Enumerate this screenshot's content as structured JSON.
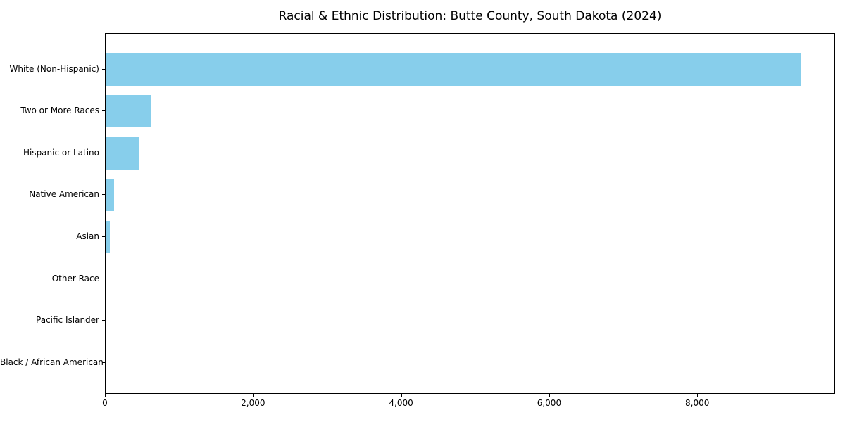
{
  "chart_data": {
    "type": "bar",
    "orientation": "horizontal",
    "title": "Racial & Ethnic Distribution: Butte County, South Dakota (2024)",
    "categories": [
      "White (Non-Hispanic)",
      "Two or More Races",
      "Hispanic or Latino",
      "Native American",
      "Asian",
      "Other Race",
      "Pacific Islander",
      "Black / African American"
    ],
    "values": [
      9390,
      620,
      455,
      115,
      57,
      10,
      6,
      0
    ],
    "xlabel": "",
    "ylabel": "",
    "xlim": [
      0,
      9862
    ],
    "x_ticks": [
      0,
      2000,
      4000,
      6000,
      8000
    ],
    "x_tick_labels": [
      "0",
      "2,000",
      "4,000",
      "6,000",
      "8,000"
    ],
    "bar_color": "#87CEEB",
    "axis_color": "#000000",
    "background_color": "#ffffff",
    "grid": false,
    "legend": null
  }
}
